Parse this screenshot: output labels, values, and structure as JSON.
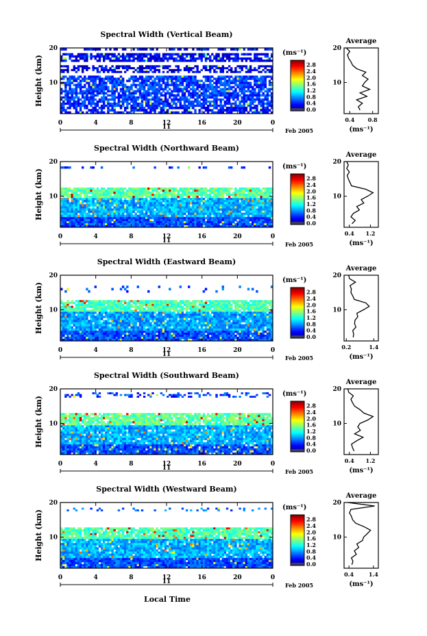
{
  "chart_data": {
    "type": "heatmap",
    "common": {
      "colorbar_unit": "(ms⁻¹)",
      "colorbar_ticks": [
        "2.8",
        "2.4",
        "2.0",
        "1.6",
        "1.2",
        "0.8",
        "0.4",
        "0.0"
      ],
      "colorbar_range": [
        0,
        3.0
      ],
      "x_ticks": [
        "0",
        "4",
        "8",
        "12",
        "16",
        "20",
        "0"
      ],
      "x_range": [
        0,
        24
      ],
      "y_ticks": [
        "20",
        "10"
      ],
      "y_range": [
        1,
        20
      ],
      "ylabel": "Height (km)",
      "date_day": "11",
      "date_label": "Feb 2005",
      "xlabel": "Local Time",
      "profile_title": "Average",
      "profile_xlabel": "(ms⁻¹)"
    },
    "panels": [
      {
        "title": "Spectral Width (Vertical Beam)",
        "profile_ticks": [
          "0.4",
          "0.8"
        ],
        "profile_range": [
          0.3,
          0.9
        ],
        "profile_heights": [
          2,
          3,
          4,
          5,
          6,
          7,
          8,
          9,
          10,
          11,
          12,
          13,
          14,
          15,
          16,
          17,
          18,
          19,
          20
        ],
        "profile_values": [
          0.58,
          0.55,
          0.62,
          0.52,
          0.7,
          0.58,
          0.75,
          0.62,
          0.66,
          0.72,
          0.62,
          0.68,
          0.52,
          0.45,
          0.42,
          0.38,
          0.36,
          0.4,
          0.34
        ],
        "layers": [
          {
            "from": 1,
            "to": 3,
            "level": 0.4,
            "sparsity": 0.3
          },
          {
            "from": 3,
            "to": 12,
            "level": 0.55,
            "sparsity": 0.18
          },
          {
            "from": 12.8,
            "to": 15,
            "level": 0.3,
            "sparsity": 0.4
          },
          {
            "from": 16,
            "to": 18.5,
            "level": 0.35,
            "sparsity": 0.25
          },
          {
            "from": 19.3,
            "to": 20,
            "level": 0.4,
            "sparsity": 0.35
          }
        ]
      },
      {
        "title": "Spectral Width (Northward Beam)",
        "profile_ticks": [
          "0.4",
          "1.2"
        ],
        "profile_range": [
          0.2,
          1.5
        ],
        "profile_heights": [
          2,
          3,
          4,
          5,
          6,
          7,
          8,
          9,
          10,
          11,
          12,
          13,
          14,
          15,
          16,
          17,
          18,
          19,
          20
        ],
        "profile_values": [
          0.5,
          0.62,
          0.46,
          0.55,
          0.78,
          0.68,
          0.95,
          0.85,
          1.1,
          1.3,
          1.02,
          0.48,
          0.42,
          0.36,
          0.32,
          0.4,
          0.3,
          0.36,
          0.3
        ],
        "layers": [
          {
            "from": 1,
            "to": 4,
            "level": 0.6,
            "sparsity": 0.02
          },
          {
            "from": 4,
            "to": 9.5,
            "level": 0.9,
            "sparsity": 0.04
          },
          {
            "from": 9.5,
            "to": 12.5,
            "level": 1.4,
            "sparsity": 0.1
          },
          {
            "from": 18,
            "to": 18.6,
            "level": 0.5,
            "sparsity": 0.85
          }
        ]
      },
      {
        "title": "Spectral Width (Eastward Beam)",
        "profile_ticks": [
          "0.2",
          "1.4"
        ],
        "profile_range": [
          0.1,
          1.6
        ],
        "profile_heights": [
          2,
          3,
          4,
          5,
          6,
          7,
          8,
          9,
          10,
          11,
          12,
          13,
          14,
          15,
          16,
          17,
          18,
          19,
          20
        ],
        "profile_values": [
          0.5,
          0.52,
          0.48,
          0.62,
          0.56,
          0.58,
          0.7,
          0.66,
          0.95,
          1.2,
          1.05,
          0.55,
          0.48,
          0.4,
          0.42,
          0.36,
          0.6,
          0.34,
          0.3
        ],
        "layers": [
          {
            "from": 1,
            "to": 4,
            "level": 0.6,
            "sparsity": 0.02
          },
          {
            "from": 4,
            "to": 9.5,
            "level": 0.85,
            "sparsity": 0.05
          },
          {
            "from": 9.5,
            "to": 12.8,
            "level": 1.35,
            "sparsity": 0.12
          },
          {
            "from": 15,
            "to": 17,
            "level": 0.6,
            "sparsity": 0.9
          }
        ]
      },
      {
        "title": "Spectral Width (Southward Beam)",
        "profile_ticks": [
          "0.4",
          "1.2"
        ],
        "profile_range": [
          0.2,
          1.5
        ],
        "profile_heights": [
          2,
          3,
          4,
          5,
          6,
          7,
          8,
          9,
          10,
          11,
          12,
          13,
          14,
          15,
          16,
          17,
          18,
          19,
          20
        ],
        "profile_values": [
          0.58,
          0.52,
          0.48,
          0.68,
          0.92,
          0.6,
          0.82,
          0.72,
          0.8,
          1.1,
          1.3,
          0.95,
          0.8,
          0.6,
          0.52,
          0.46,
          0.55,
          0.38,
          0.34
        ],
        "layers": [
          {
            "from": 1,
            "to": 4,
            "level": 0.6,
            "sparsity": 0.03
          },
          {
            "from": 4,
            "to": 9.5,
            "level": 0.9,
            "sparsity": 0.05
          },
          {
            "from": 9.5,
            "to": 13,
            "level": 1.4,
            "sparsity": 0.1
          },
          {
            "from": 17.5,
            "to": 19,
            "level": 0.55,
            "sparsity": 0.7
          }
        ]
      },
      {
        "title": "Spectral Width (Westward Beam)",
        "profile_ticks": [
          "0.4",
          "1.4"
        ],
        "profile_range": [
          0.2,
          1.6
        ],
        "profile_heights": [
          2,
          3,
          4,
          5,
          6,
          7,
          8,
          9,
          10,
          11,
          12,
          13,
          14,
          15,
          16,
          17,
          18,
          19,
          20
        ],
        "profile_values": [
          0.52,
          0.56,
          0.5,
          0.7,
          0.62,
          0.8,
          0.72,
          0.95,
          1.0,
          1.15,
          1.28,
          1.02,
          0.68,
          0.55,
          0.5,
          0.42,
          0.48,
          1.45,
          0.36
        ],
        "layers": [
          {
            "from": 1,
            "to": 4,
            "level": 0.6,
            "sparsity": 0.03
          },
          {
            "from": 4,
            "to": 9.5,
            "level": 0.9,
            "sparsity": 0.05
          },
          {
            "from": 9.5,
            "to": 12.8,
            "level": 1.35,
            "sparsity": 0.1
          },
          {
            "from": 17.5,
            "to": 18.5,
            "level": 0.7,
            "sparsity": 0.8
          }
        ]
      }
    ]
  }
}
